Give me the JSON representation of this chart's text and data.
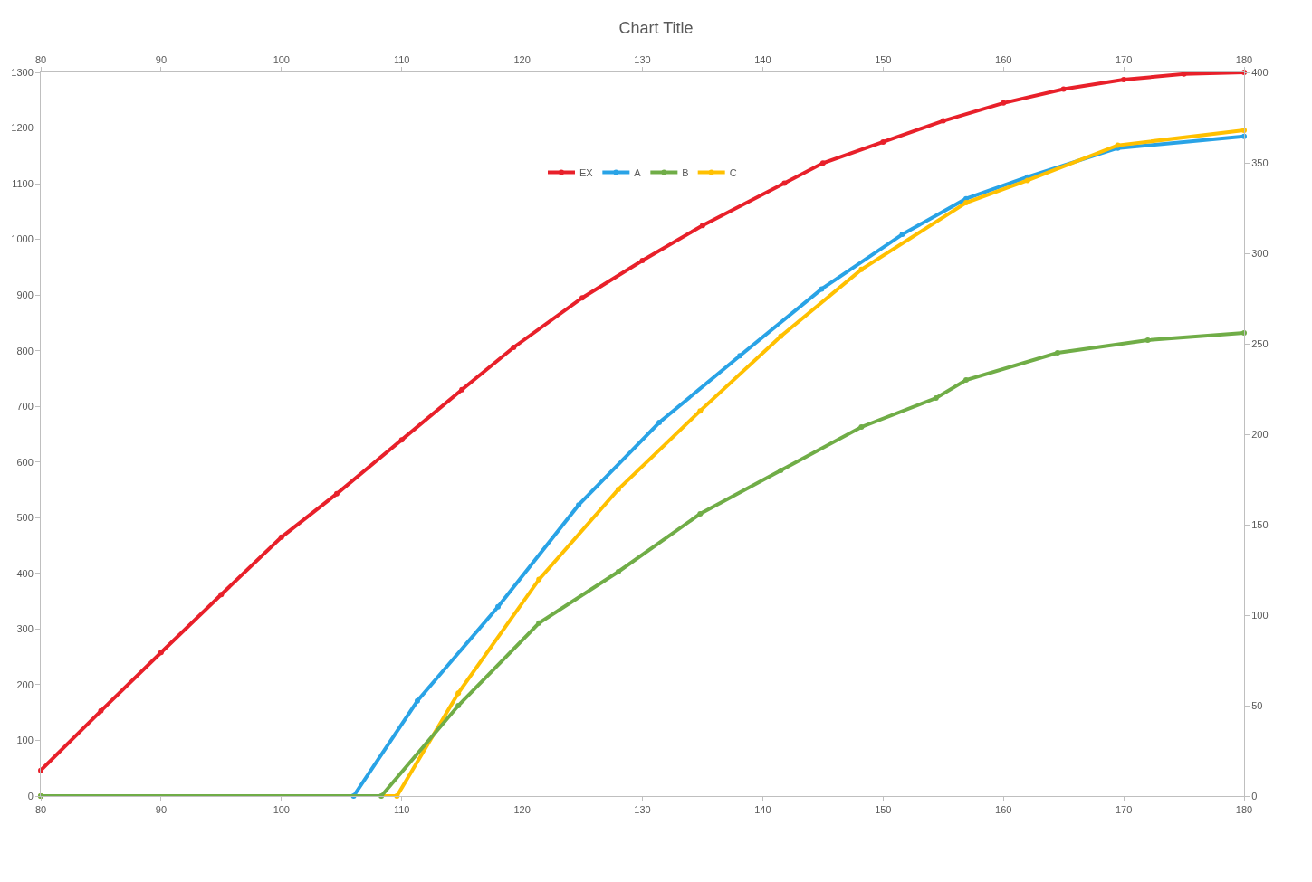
{
  "chart_data": {
    "type": "line",
    "title": "Chart Title",
    "xlim": [
      80,
      180
    ],
    "xticks": [
      80,
      90,
      100,
      110,
      120,
      130,
      140,
      150,
      160,
      170,
      180
    ],
    "x2lim": [
      80,
      180
    ],
    "x2ticks": [
      80,
      90,
      100,
      110,
      120,
      130,
      140,
      150,
      160,
      170,
      180
    ],
    "ylim": [
      0,
      1300
    ],
    "yticks": [
      0,
      100,
      200,
      300,
      400,
      500,
      600,
      700,
      800,
      900,
      1000,
      1100,
      1200,
      1300
    ],
    "y2lim": [
      0,
      400
    ],
    "y2ticks": [
      0,
      50,
      100,
      150,
      200,
      250,
      300,
      350,
      400
    ],
    "legend": "top",
    "marker": "circle",
    "series": [
      {
        "name": "EX",
        "color": "#e8202a",
        "x": [
          80,
          85,
          90,
          95,
          100,
          104.6,
          110,
          115,
          119.3,
          125,
          130,
          135,
          141.8,
          145,
          150,
          155,
          160,
          165,
          170,
          175,
          180
        ],
        "values": [
          46,
          153,
          258,
          362,
          465,
          543,
          640,
          730,
          806,
          895,
          962,
          1025,
          1101,
          1137,
          1175,
          1213,
          1245,
          1270,
          1287,
          1297,
          1300
        ]
      },
      {
        "name": "A",
        "color": "#29a3e6",
        "x": [
          80,
          106,
          111.3,
          118,
          124.7,
          131.4,
          138.1,
          144.9,
          151.6,
          156.9,
          162,
          169.5,
          180
        ],
        "values": [
          0,
          0,
          171,
          340,
          523,
          671,
          791,
          911,
          1009,
          1073,
          1112,
          1164,
          1185
        ]
      },
      {
        "name": "B",
        "color": "#70ad47",
        "axis": "y2",
        "x": [
          80,
          108.3,
          114.7,
          121.4,
          128,
          134.8,
          141.5,
          148.2,
          154.4,
          156.9,
          164.5,
          172,
          180
        ],
        "values": [
          0,
          0,
          50,
          95.6,
          124,
          156,
          180,
          204,
          220,
          230,
          245,
          252,
          256
        ]
      },
      {
        "name": "C",
        "color": "#ffc000",
        "x": [
          80,
          109.6,
          114.7,
          121.4,
          128,
          134.8,
          141.5,
          148.2,
          156.9,
          162,
          169.5,
          180
        ],
        "values": [
          0,
          0,
          185,
          389,
          551,
          692,
          826,
          946,
          1066,
          1106,
          1169,
          1196
        ]
      }
    ]
  }
}
